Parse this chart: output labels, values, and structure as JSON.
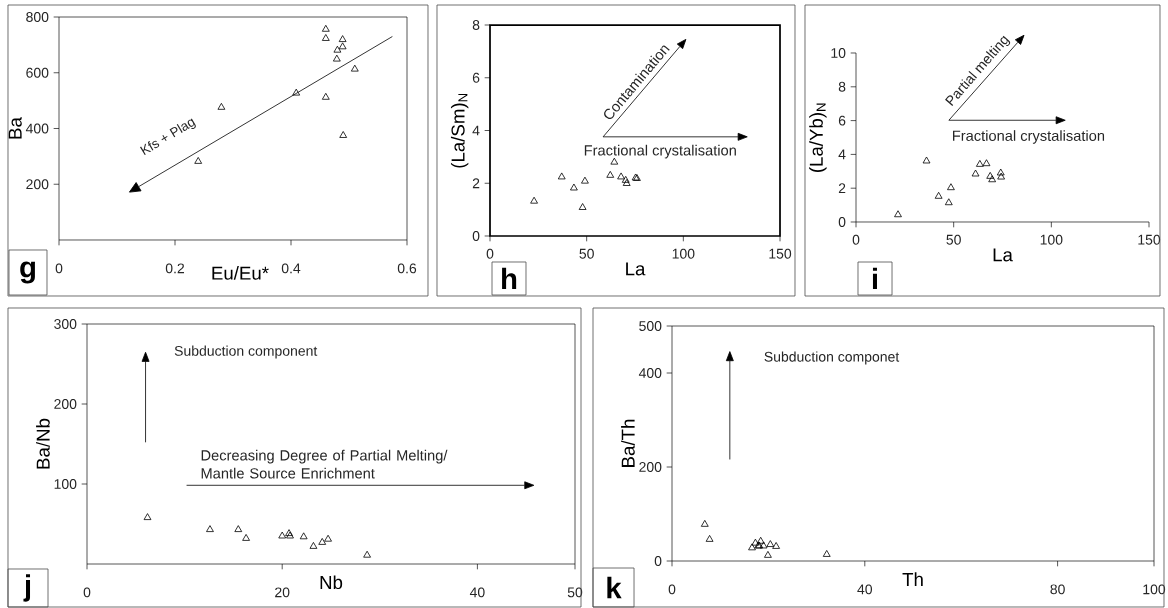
{
  "chart_data": [
    {
      "type": "scatter",
      "title": "g",
      "xlabel": "Eu/Eu*",
      "ylabel": "Ba",
      "marker": "triangle",
      "color": "#000000",
      "x": [
        0.46,
        0.46,
        0.489,
        0.489,
        0.48,
        0.479,
        0.51,
        0.409,
        0.46,
        0.28,
        0.49,
        0.24
      ],
      "values": [
        756,
        723,
        719,
        693,
        681,
        649,
        613,
        527,
        512,
        476,
        375,
        282
      ],
      "xlim": [
        0,
        0.6
      ],
      "ylim": [
        0,
        800
      ],
      "xticks": [
        0,
        0.2,
        0.4,
        0.6
      ],
      "yticks": [
        200,
        400,
        600,
        800
      ],
      "annotations": [
        "Kfs + Plag"
      ]
    },
    {
      "type": "scatter",
      "title": "h",
      "xlabel": "La",
      "ylabel": "(La/Sm)$_{N}$",
      "marker": "triangle",
      "color": "#000000",
      "x": [
        22.8,
        37.1,
        43.4,
        49.1,
        47.9,
        62.2,
        64.3,
        67.8,
        70.2,
        70.7,
        75.3,
        76.0
      ],
      "values": [
        1.32,
        2.24,
        1.82,
        2.08,
        1.08,
        2.3,
        2.8,
        2.24,
        2.11,
        1.99,
        2.2,
        2.18
      ],
      "xlim": [
        0,
        150
      ],
      "ylim": [
        0,
        8
      ],
      "xticks": [
        0,
        50,
        100,
        150
      ],
      "yticks": [
        0,
        2,
        4,
        6,
        8
      ],
      "annotations": [
        "Contamination",
        "Fractional crystalisation"
      ]
    },
    {
      "type": "scatter",
      "title": "i",
      "xlabel": "La",
      "ylabel": "(La/Yb)$_{N}$",
      "marker": "triangle",
      "color": "#000000",
      "x": [
        21.5,
        36.1,
        42.3,
        48.6,
        47.5,
        61.2,
        63.4,
        66.8,
        68.7,
        69.7,
        74.1,
        74.3
      ],
      "values": [
        0.43,
        3.61,
        1.52,
        2.03,
        1.14,
        2.84,
        3.41,
        3.45,
        2.7,
        2.5,
        2.9,
        2.66
      ],
      "xlim": [
        0,
        150
      ],
      "ylim": [
        0,
        10
      ],
      "xticks": [
        0,
        50,
        100,
        150
      ],
      "yticks": [
        0,
        2,
        4,
        6,
        8,
        10
      ],
      "annotations": [
        "Partial melting",
        "Fractional crystalisation"
      ]
    },
    {
      "type": "scatter",
      "title": "j",
      "xlabel": "Nb",
      "ylabel": "Ba/Nb",
      "marker": "triangle",
      "color": "#000000",
      "x": [
        6.2,
        12.6,
        15.5,
        16.3,
        20.0,
        20.7,
        20.8,
        22.2,
        23.2,
        24.1,
        24.7,
        28.7
      ],
      "values": [
        58,
        43,
        43,
        32,
        35,
        38,
        35,
        34,
        22,
        27,
        31,
        11
      ],
      "xlim": [
        0,
        50
      ],
      "ylim": [
        0,
        300
      ],
      "xticks": [
        0,
        20,
        40,
        50
      ],
      "yticks": [
        100,
        200,
        300
      ],
      "annotations": [
        "Subduction component",
        "Decreasing Degree of Partial Melting/ Mantle Source Enrichment"
      ]
    },
    {
      "type": "scatter",
      "title": "k",
      "xlabel": "Th",
      "ylabel": "Ba/Th",
      "marker": "triangle",
      "color": "#000000",
      "x": [
        6.8,
        7.8,
        16.6,
        17.3,
        18.1,
        18.4,
        19.0,
        20.4,
        19.9,
        21.6,
        32.1,
        17.9
      ],
      "values": [
        78,
        46,
        28,
        38,
        32,
        42,
        32,
        35,
        12,
        31,
        14,
        32
      ],
      "xlim": [
        0,
        100
      ],
      "ylim": [
        0,
        500
      ],
      "xticks": [
        0,
        40,
        80,
        100
      ],
      "yticks": [
        0,
        200,
        400,
        500
      ],
      "annotations": [
        "Subduction componet"
      ]
    }
  ]
}
